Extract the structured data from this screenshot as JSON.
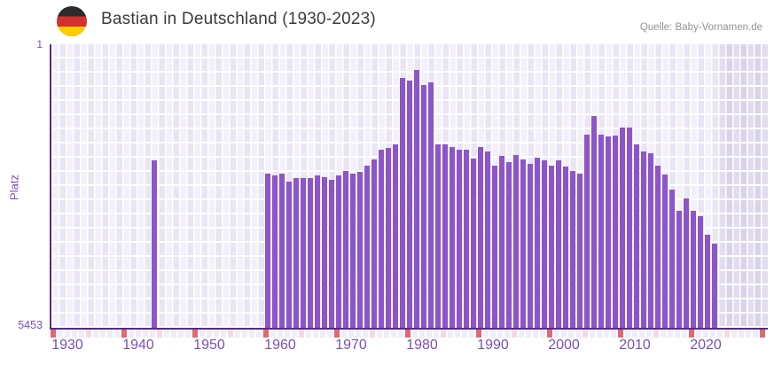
{
  "header": {
    "title": "Bastian in Deutschland (1930-2023)",
    "source": "Quelle: Baby-Vornamen.de",
    "flag": "germany-flag"
  },
  "chart_data": {
    "type": "bar",
    "title": "Bastian in Deutschland (1930-2023)",
    "xlabel": "",
    "ylabel": "Platz",
    "y_axis": {
      "top_label": "1",
      "bottom_label": "5453",
      "min": 1,
      "max": 5453,
      "inverted": true,
      "note": "rank 1 at top, bars grow upward; taller bar = better rank"
    },
    "x_axis": {
      "start": 1928,
      "end": 2028,
      "ticks": [
        1930,
        1940,
        1950,
        1960,
        1970,
        1980,
        1990,
        2000,
        2010,
        2020
      ]
    },
    "no_data_band": {
      "from": 2022,
      "to": 2028
    },
    "strip": {
      "red_start": 1928,
      "pink_start": 1933
    },
    "legend": "none",
    "grid": true,
    "series": [
      {
        "name": "Platz von Bastian",
        "points": [
          [
            1942,
            2230
          ],
          [
            1958,
            2490
          ],
          [
            1959,
            2530
          ],
          [
            1960,
            2490
          ],
          [
            1961,
            2640
          ],
          [
            1962,
            2580
          ],
          [
            1963,
            2580
          ],
          [
            1964,
            2580
          ],
          [
            1965,
            2530
          ],
          [
            1966,
            2560
          ],
          [
            1967,
            2600
          ],
          [
            1968,
            2520
          ],
          [
            1969,
            2430
          ],
          [
            1970,
            2490
          ],
          [
            1971,
            2460
          ],
          [
            1972,
            2330
          ],
          [
            1973,
            2220
          ],
          [
            1974,
            2030
          ],
          [
            1975,
            1990
          ],
          [
            1976,
            1920
          ],
          [
            1977,
            650
          ],
          [
            1978,
            700
          ],
          [
            1979,
            500
          ],
          [
            1980,
            790
          ],
          [
            1981,
            740
          ],
          [
            1982,
            1930
          ],
          [
            1983,
            1920
          ],
          [
            1984,
            1970
          ],
          [
            1985,
            2030
          ],
          [
            1986,
            2030
          ],
          [
            1987,
            2200
          ],
          [
            1988,
            1970
          ],
          [
            1989,
            2070
          ],
          [
            1990,
            2330
          ],
          [
            1991,
            2140
          ],
          [
            1992,
            2260
          ],
          [
            1993,
            2130
          ],
          [
            1994,
            2220
          ],
          [
            1995,
            2300
          ],
          [
            1996,
            2180
          ],
          [
            1997,
            2230
          ],
          [
            1998,
            2330
          ],
          [
            1999,
            2230
          ],
          [
            2000,
            2350
          ],
          [
            2001,
            2430
          ],
          [
            2002,
            2490
          ],
          [
            2003,
            1740
          ],
          [
            2004,
            1380
          ],
          [
            2005,
            1730
          ],
          [
            2006,
            1770
          ],
          [
            2007,
            1750
          ],
          [
            2008,
            1600
          ],
          [
            2009,
            1600
          ],
          [
            2010,
            1920
          ],
          [
            2011,
            2060
          ],
          [
            2012,
            2100
          ],
          [
            2013,
            2340
          ],
          [
            2014,
            2500
          ],
          [
            2015,
            2790
          ],
          [
            2016,
            3210
          ],
          [
            2017,
            2960
          ],
          [
            2018,
            3210
          ],
          [
            2019,
            3300
          ],
          [
            2020,
            3660
          ],
          [
            2021,
            3840
          ]
        ]
      }
    ],
    "colors": {
      "bar": "#8d55c7",
      "axis": "#552a8c",
      "tick": "#7b50b6",
      "grid_light": "#f3f0fa",
      "grid_dark": "#eae5f5",
      "band_light": "#e2dcee",
      "band_dark": "#d9d3e7",
      "strip_red": "#e0696e",
      "strip_pink": "#f6d9e0",
      "strip_default": "#f0edf9",
      "flag_black": "#2b2b2b",
      "flag_red": "#d53030",
      "flag_gold": "#ffce00"
    }
  }
}
